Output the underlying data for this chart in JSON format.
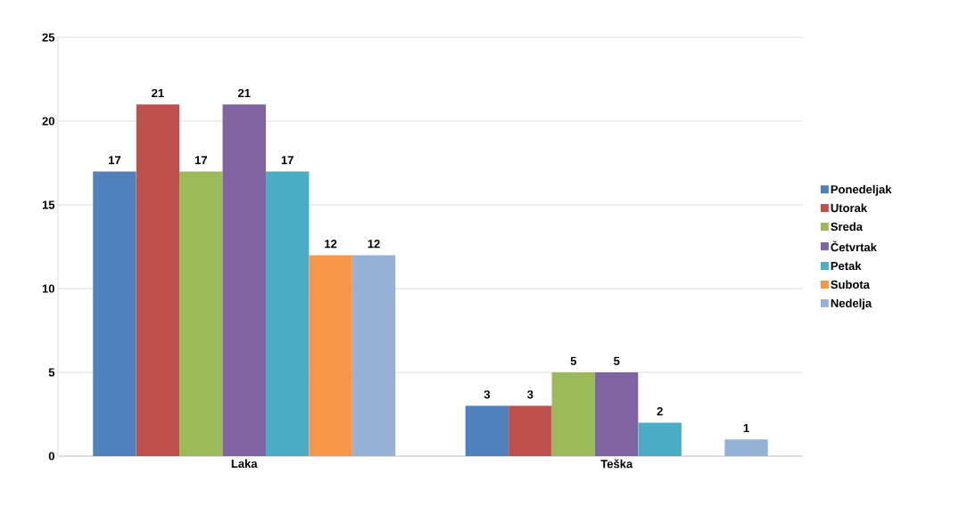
{
  "chart_data": {
    "type": "bar",
    "categories": [
      "Laka",
      "Teška"
    ],
    "series": [
      {
        "name": "Ponedeljak",
        "color": "#4f81bd",
        "values": [
          17,
          3
        ]
      },
      {
        "name": "Utorak",
        "color": "#c0504d",
        "values": [
          21,
          3
        ]
      },
      {
        "name": "Sreda",
        "color": "#9bbb59",
        "values": [
          17,
          5
        ]
      },
      {
        "name": "Četvrtak",
        "color": "#8064a2",
        "values": [
          21,
          5
        ]
      },
      {
        "name": "Petak",
        "color": "#4bacc6",
        "values": [
          17,
          2
        ]
      },
      {
        "name": "Subota",
        "color": "#f79646",
        "values": [
          12,
          null
        ]
      },
      {
        "name": "Nedelja",
        "color": "#95b3d7",
        "values": [
          12,
          1
        ]
      }
    ],
    "ylim": [
      0,
      25
    ],
    "yticks": [
      0,
      5,
      10,
      15,
      20,
      25
    ],
    "grid": "y",
    "legend": "right",
    "data_labels": true
  }
}
